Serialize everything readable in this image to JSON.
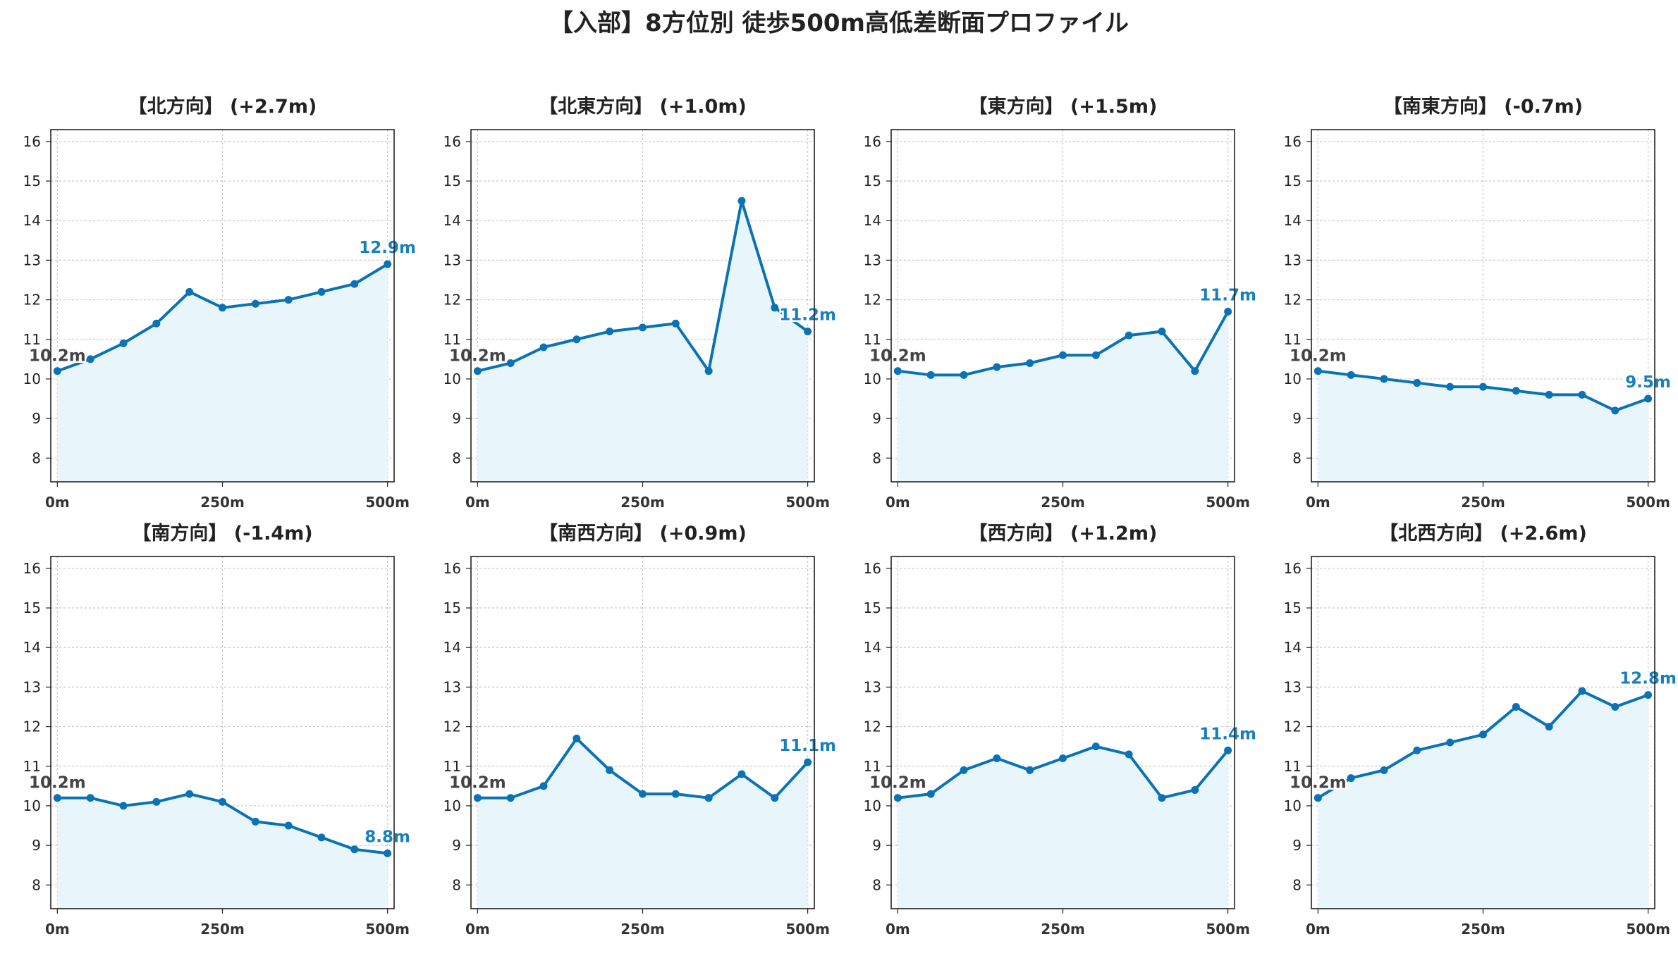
{
  "title": "【入部】8方位別 徒歩500m高低差断面プロファイル",
  "colors": {
    "line": "#0a72b5",
    "fill": "#e8f6fc",
    "grid": "#c8c8c8",
    "start_label": "#444444",
    "end_label": "#1a7fbf"
  },
  "chart_data": [
    {
      "type": "area",
      "title": "【北方向】 (+2.7m)",
      "x": [
        0,
        50,
        100,
        150,
        200,
        250,
        300,
        350,
        400,
        450,
        500
      ],
      "values": [
        10.2,
        10.5,
        10.9,
        11.4,
        12.2,
        11.8,
        11.9,
        12.0,
        12.2,
        12.4,
        12.9
      ],
      "start_label": "10.2m",
      "end_label": "12.9m",
      "x_ticks": [
        "0m",
        "250m",
        "500m"
      ],
      "y_ticks": [
        8,
        9,
        10,
        11,
        12,
        13,
        14,
        15,
        16
      ],
      "ylim": [
        7.4,
        16.3
      ],
      "xlim": [
        -10,
        510
      ],
      "grid": true
    },
    {
      "type": "area",
      "title": "【北東方向】 (+1.0m)",
      "x": [
        0,
        50,
        100,
        150,
        200,
        250,
        300,
        350,
        400,
        450,
        500
      ],
      "values": [
        10.2,
        10.4,
        10.8,
        11.0,
        11.2,
        11.3,
        11.4,
        10.2,
        14.5,
        11.8,
        11.2
      ],
      "start_label": "10.2m",
      "end_label": "11.2m",
      "x_ticks": [
        "0m",
        "250m",
        "500m"
      ],
      "y_ticks": [
        8,
        9,
        10,
        11,
        12,
        13,
        14,
        15,
        16
      ],
      "ylim": [
        7.4,
        16.3
      ],
      "xlim": [
        -10,
        510
      ],
      "grid": true
    },
    {
      "type": "area",
      "title": "【東方向】 (+1.5m)",
      "x": [
        0,
        50,
        100,
        150,
        200,
        250,
        300,
        350,
        400,
        450,
        500
      ],
      "values": [
        10.2,
        10.1,
        10.1,
        10.3,
        10.4,
        10.6,
        10.6,
        11.1,
        11.2,
        10.2,
        11.7
      ],
      "start_label": "10.2m",
      "end_label": "11.7m",
      "x_ticks": [
        "0m",
        "250m",
        "500m"
      ],
      "y_ticks": [
        8,
        9,
        10,
        11,
        12,
        13,
        14,
        15,
        16
      ],
      "ylim": [
        7.4,
        16.3
      ],
      "xlim": [
        -10,
        510
      ],
      "grid": true
    },
    {
      "type": "area",
      "title": "【南東方向】 (-0.7m)",
      "x": [
        0,
        50,
        100,
        150,
        200,
        250,
        300,
        350,
        400,
        450,
        500
      ],
      "values": [
        10.2,
        10.1,
        10.0,
        9.9,
        9.8,
        9.8,
        9.7,
        9.6,
        9.6,
        9.2,
        9.5
      ],
      "start_label": "10.2m",
      "end_label": "9.5m",
      "x_ticks": [
        "0m",
        "250m",
        "500m"
      ],
      "y_ticks": [
        8,
        9,
        10,
        11,
        12,
        13,
        14,
        15,
        16
      ],
      "ylim": [
        7.4,
        16.3
      ],
      "xlim": [
        -10,
        510
      ],
      "grid": true
    },
    {
      "type": "area",
      "title": "【南方向】 (-1.4m)",
      "x": [
        0,
        50,
        100,
        150,
        200,
        250,
        300,
        350,
        400,
        450,
        500
      ],
      "values": [
        10.2,
        10.2,
        10.0,
        10.1,
        10.3,
        10.1,
        9.6,
        9.5,
        9.2,
        8.9,
        8.8
      ],
      "start_label": "10.2m",
      "end_label": "8.8m",
      "x_ticks": [
        "0m",
        "250m",
        "500m"
      ],
      "y_ticks": [
        8,
        9,
        10,
        11,
        12,
        13,
        14,
        15,
        16
      ],
      "ylim": [
        7.4,
        16.3
      ],
      "xlim": [
        -10,
        510
      ],
      "grid": true
    },
    {
      "type": "area",
      "title": "【南西方向】 (+0.9m)",
      "x": [
        0,
        50,
        100,
        150,
        200,
        250,
        300,
        350,
        400,
        450,
        500
      ],
      "values": [
        10.2,
        10.2,
        10.5,
        11.7,
        10.9,
        10.3,
        10.3,
        10.2,
        10.8,
        10.2,
        11.1
      ],
      "start_label": "10.2m",
      "end_label": "11.1m",
      "x_ticks": [
        "0m",
        "250m",
        "500m"
      ],
      "y_ticks": [
        8,
        9,
        10,
        11,
        12,
        13,
        14,
        15,
        16
      ],
      "ylim": [
        7.4,
        16.3
      ],
      "xlim": [
        -10,
        510
      ],
      "grid": true
    },
    {
      "type": "area",
      "title": "【西方向】 (+1.2m)",
      "x": [
        0,
        50,
        100,
        150,
        200,
        250,
        300,
        350,
        400,
        450,
        500
      ],
      "values": [
        10.2,
        10.3,
        10.9,
        11.2,
        10.9,
        11.2,
        11.5,
        11.3,
        10.2,
        10.4,
        11.4
      ],
      "start_label": "10.2m",
      "end_label": "11.4m",
      "x_ticks": [
        "0m",
        "250m",
        "500m"
      ],
      "y_ticks": [
        8,
        9,
        10,
        11,
        12,
        13,
        14,
        15,
        16
      ],
      "ylim": [
        7.4,
        16.3
      ],
      "xlim": [
        -10,
        510
      ],
      "grid": true
    },
    {
      "type": "area",
      "title": "【北西方向】 (+2.6m)",
      "x": [
        0,
        50,
        100,
        150,
        200,
        250,
        300,
        350,
        400,
        450,
        500
      ],
      "values": [
        10.2,
        10.7,
        10.9,
        11.4,
        11.6,
        11.8,
        12.5,
        12.0,
        12.9,
        12.5,
        12.8
      ],
      "start_label": "10.2m",
      "end_label": "12.8m",
      "x_ticks": [
        "0m",
        "250m",
        "500m"
      ],
      "y_ticks": [
        8,
        9,
        10,
        11,
        12,
        13,
        14,
        15,
        16
      ],
      "ylim": [
        7.4,
        16.3
      ],
      "xlim": [
        -10,
        510
      ],
      "grid": true
    }
  ]
}
